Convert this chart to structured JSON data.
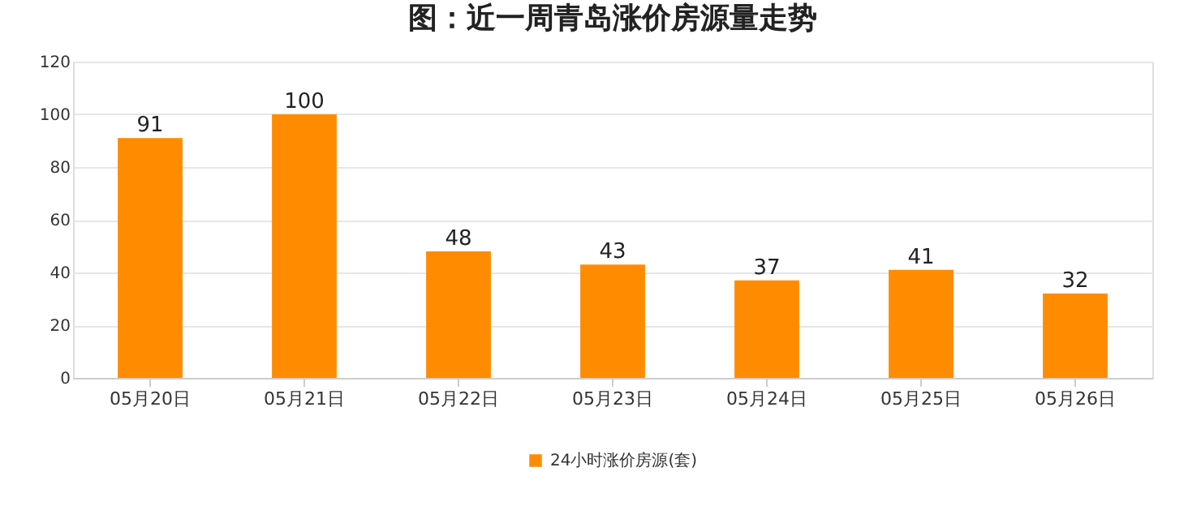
{
  "chart_data": {
    "type": "bar",
    "title": "图：近一周青岛涨价房源量走势",
    "categories": [
      "05月20日",
      "05月21日",
      "05月22日",
      "05月23日",
      "05月24日",
      "05月25日",
      "05月26日"
    ],
    "series": [
      {
        "name": "24小时涨价房源(套)",
        "color": "#ff8c00",
        "values": [
          91,
          100,
          48,
          43,
          37,
          41,
          32
        ]
      }
    ],
    "ylim": [
      0,
      120
    ],
    "yticks": [
      0,
      20,
      40,
      60,
      80,
      100,
      120
    ],
    "grid": "y",
    "legend": "bottom",
    "data_labels": true
  }
}
